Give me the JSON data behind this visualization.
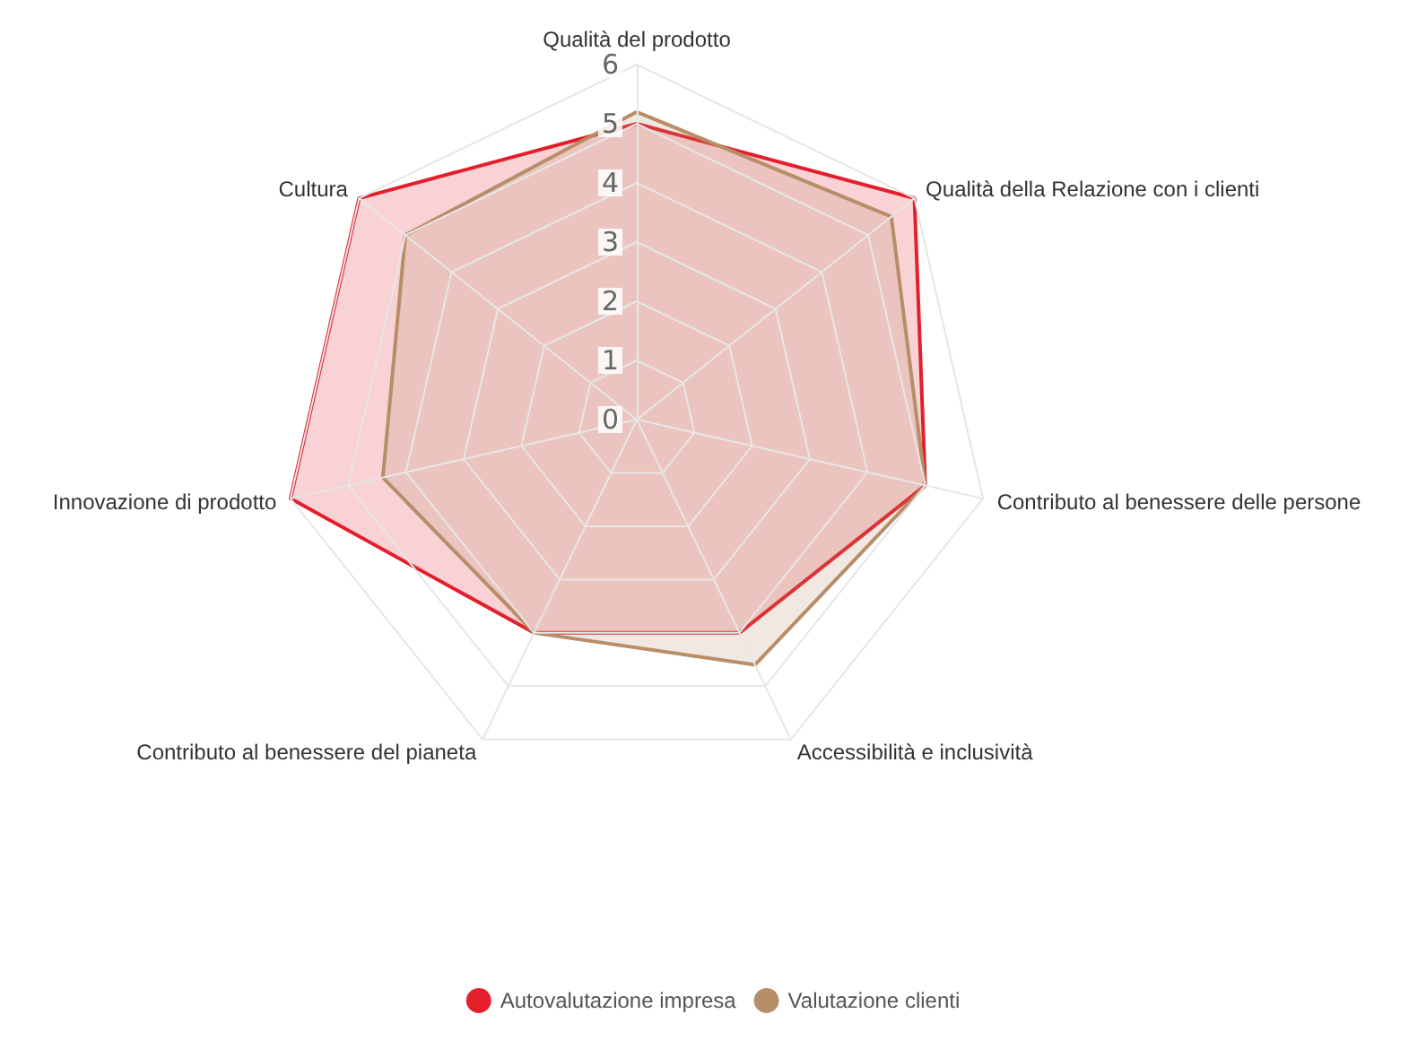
{
  "chart_data": {
    "type": "radar",
    "categories": [
      "Qualità del prodotto",
      "Qualità della Relazione con i clienti",
      "Contributo al benessere delle persone",
      "Accessibilità e inclusività",
      "Contributo al benessere del pianeta",
      "Innovazione di prodotto",
      "Cultura"
    ],
    "series": [
      {
        "name": "Autovalutazione impresa",
        "color": "#e3202c",
        "values": [
          5,
          6,
          5,
          4,
          4,
          6,
          6
        ]
      },
      {
        "name": "Valutazione clienti",
        "color": "#b88e68",
        "values": [
          5.2,
          5.5,
          5,
          4.6,
          4,
          4.4,
          5
        ]
      }
    ],
    "ylim": [
      0,
      6
    ],
    "yticks": [
      0,
      1,
      2,
      3,
      4,
      5,
      6
    ],
    "grid": true,
    "legend": "bottom",
    "marker": "none"
  }
}
